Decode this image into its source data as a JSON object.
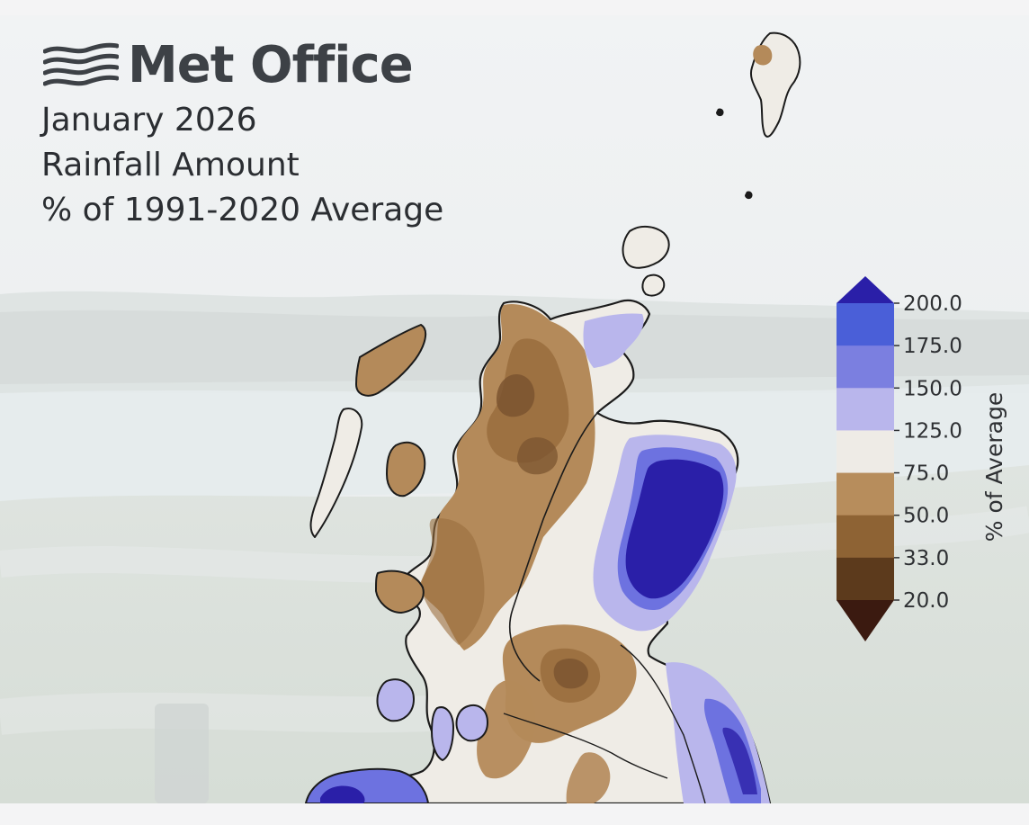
{
  "brand": {
    "name": "Met Office",
    "logo_icon": "met-office-waves-icon"
  },
  "title": {
    "line1": "January 2026",
    "line2": "Rainfall Amount",
    "line3": "% of 1991-2020 Average"
  },
  "legend": {
    "label": "% of Average",
    "ticks": [
      "200.0",
      "175.0",
      "150.0",
      "125.0",
      "75.0",
      "50.0",
      "33.0",
      "20.0"
    ],
    "bands": [
      {
        "range": "> 200",
        "color": "#2a1fa8"
      },
      {
        "range": "175-200",
        "color": "#4a5fd8"
      },
      {
        "range": "150-175",
        "color": "#7b7fe0"
      },
      {
        "range": "125-150",
        "color": "#b9b6ec"
      },
      {
        "range": "75-125",
        "color": "#eeebe6"
      },
      {
        "range": "50-75",
        "color": "#b78d5c"
      },
      {
        "range": "33-50",
        "color": "#8e6334"
      },
      {
        "range": "20-33",
        "color": "#5c3a1c"
      },
      {
        "range": "< 20",
        "color": "#3b1a10"
      }
    ]
  },
  "map_regions": {
    "colors": {
      "dry_light": "#b48a5a",
      "dry_mid": "#9a6e3e",
      "dry_dark": "#7b5430",
      "near_average": "#efece6",
      "wet_light": "#b9b6ec",
      "wet_mid": "#6d72e0",
      "wet_high": "#2a1fa8",
      "coast": "#1b1b1b"
    }
  }
}
